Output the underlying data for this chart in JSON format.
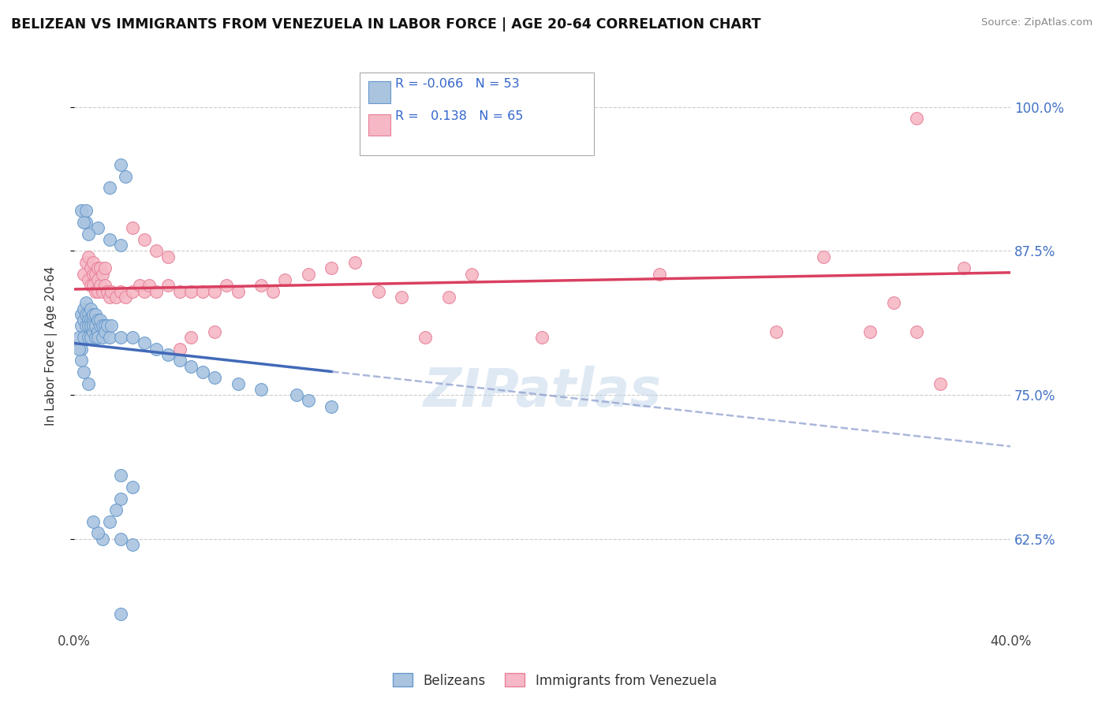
{
  "title": "BELIZEAN VS IMMIGRANTS FROM VENEZUELA IN LABOR FORCE | AGE 20-64 CORRELATION CHART",
  "source": "Source: ZipAtlas.com",
  "ylabel": "In Labor Force | Age 20-64",
  "x_min": 0.0,
  "x_max": 0.4,
  "y_min": 0.545,
  "y_max": 1.04,
  "y_ticks": [
    0.625,
    0.75,
    0.875,
    1.0
  ],
  "y_tick_labels": [
    "62.5%",
    "75.0%",
    "87.5%",
    "100.0%"
  ],
  "x_ticks": [
    0.0,
    0.1,
    0.2,
    0.3,
    0.4
  ],
  "x_tick_labels": [
    "0.0%",
    "",
    "",
    "",
    "40.0%"
  ],
  "blue_scatter_color": "#aac4e0",
  "blue_edge_color": "#6699cc",
  "pink_scatter_color": "#f5b8c4",
  "pink_edge_color": "#e8809a",
  "trend_blue": "#4169b8",
  "trend_pink": "#d94060",
  "trend_blue_dashed": "#8899cc",
  "R_blue": -0.066,
  "N_blue": 53,
  "R_pink": 0.138,
  "N_pink": 65,
  "blue_points_x": [
    0.002,
    0.003,
    0.003,
    0.003,
    0.004,
    0.004,
    0.004,
    0.005,
    0.005,
    0.005,
    0.006,
    0.006,
    0.006,
    0.006,
    0.007,
    0.007,
    0.007,
    0.007,
    0.008,
    0.008,
    0.008,
    0.008,
    0.009,
    0.009,
    0.009,
    0.01,
    0.01,
    0.01,
    0.011,
    0.011,
    0.012,
    0.012,
    0.013,
    0.013,
    0.014,
    0.015,
    0.016,
    0.02,
    0.025,
    0.03,
    0.035,
    0.04,
    0.045,
    0.05,
    0.055,
    0.06,
    0.07,
    0.08,
    0.095,
    0.1,
    0.11,
    0.02,
    0.025
  ],
  "blue_points_y": [
    0.8,
    0.82,
    0.79,
    0.81,
    0.825,
    0.815,
    0.8,
    0.83,
    0.82,
    0.81,
    0.82,
    0.815,
    0.81,
    0.8,
    0.825,
    0.815,
    0.8,
    0.81,
    0.815,
    0.82,
    0.805,
    0.81,
    0.82,
    0.81,
    0.8,
    0.815,
    0.805,
    0.8,
    0.81,
    0.815,
    0.81,
    0.8,
    0.81,
    0.805,
    0.81,
    0.8,
    0.81,
    0.8,
    0.8,
    0.795,
    0.79,
    0.785,
    0.78,
    0.775,
    0.77,
    0.765,
    0.76,
    0.755,
    0.75,
    0.745,
    0.74,
    0.625,
    0.62
  ],
  "blue_outliers_x": [
    0.005,
    0.01,
    0.015,
    0.02,
    0.003,
    0.004,
    0.005,
    0.006,
    0.02,
    0.025,
    0.02,
    0.018,
    0.015,
    0.012,
    0.01,
    0.008,
    0.006,
    0.004,
    0.003,
    0.002,
    0.02,
    0.02,
    0.022,
    0.015
  ],
  "blue_outliers_y": [
    0.9,
    0.895,
    0.885,
    0.88,
    0.91,
    0.9,
    0.91,
    0.89,
    0.68,
    0.67,
    0.66,
    0.65,
    0.64,
    0.625,
    0.63,
    0.64,
    0.76,
    0.77,
    0.78,
    0.79,
    0.56,
    0.95,
    0.94,
    0.93
  ],
  "pink_points_x": [
    0.004,
    0.005,
    0.006,
    0.006,
    0.007,
    0.007,
    0.008,
    0.008,
    0.008,
    0.009,
    0.009,
    0.01,
    0.01,
    0.01,
    0.011,
    0.011,
    0.012,
    0.012,
    0.013,
    0.013,
    0.014,
    0.015,
    0.016,
    0.018,
    0.02,
    0.022,
    0.025,
    0.028,
    0.03,
    0.032,
    0.035,
    0.04,
    0.045,
    0.05,
    0.055,
    0.06,
    0.065,
    0.07,
    0.08,
    0.085,
    0.09,
    0.1,
    0.11,
    0.12,
    0.13,
    0.14,
    0.15,
    0.16,
    0.17,
    0.2,
    0.25,
    0.3,
    0.32,
    0.34,
    0.35,
    0.36,
    0.38,
    0.025,
    0.03,
    0.035,
    0.04,
    0.045,
    0.05,
    0.06,
    0.37
  ],
  "pink_points_y": [
    0.855,
    0.865,
    0.87,
    0.85,
    0.86,
    0.845,
    0.855,
    0.845,
    0.865,
    0.855,
    0.84,
    0.86,
    0.85,
    0.84,
    0.86,
    0.845,
    0.855,
    0.84,
    0.86,
    0.845,
    0.84,
    0.835,
    0.84,
    0.835,
    0.84,
    0.835,
    0.84,
    0.845,
    0.84,
    0.845,
    0.84,
    0.845,
    0.84,
    0.84,
    0.84,
    0.84,
    0.845,
    0.84,
    0.845,
    0.84,
    0.85,
    0.855,
    0.86,
    0.865,
    0.84,
    0.835,
    0.8,
    0.835,
    0.855,
    0.8,
    0.855,
    0.805,
    0.87,
    0.805,
    0.83,
    0.805,
    0.86,
    0.895,
    0.885,
    0.875,
    0.87,
    0.79,
    0.8,
    0.805,
    0.76
  ],
  "pink_outlier_x": [
    0.36
  ],
  "pink_outlier_y": [
    0.99
  ],
  "watermark": "ZIPatlas",
  "legend_label_blue": "Belizeans",
  "legend_label_pink": "Immigrants from Venezuela"
}
